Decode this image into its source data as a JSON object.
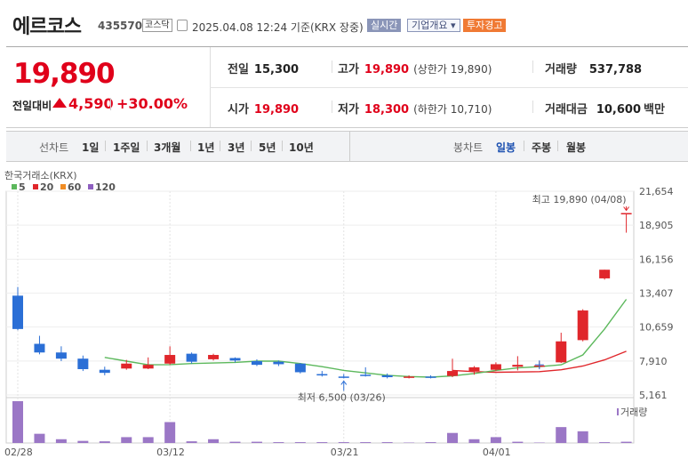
{
  "header": {
    "name": "에르코스",
    "code": "435570",
    "market": "코스닥",
    "datetime": "2025.04.08 12:24 기준(KRX 장중)",
    "badge_realtime": "실시간",
    "badge_company": "기업개요 ▾",
    "badge_warning": "투자경고"
  },
  "quote": {
    "price": "19,890",
    "change_label": "전일대비",
    "change": "4,590",
    "change_pct": "+30.00%",
    "prev_close_label": "전일",
    "prev_close": "15,300",
    "high_label": "고가",
    "high": "19,890",
    "upper_limit": "(상한가 19,890)",
    "volume_label": "거래량",
    "volume": "537,788",
    "open_label": "시가",
    "open": "19,890",
    "low_label": "저가",
    "low": "18,300",
    "lower_limit": "(하한가 10,710)",
    "amount_label": "거래대금",
    "amount": "10,600",
    "amount_unit": "백만"
  },
  "tabs": {
    "line_label": "선차트",
    "line": [
      "1일",
      "1주일",
      "3개월",
      "1년",
      "3년",
      "5년",
      "10년"
    ],
    "candle_label": "봉차트",
    "candle": [
      "일봉",
      "주봉",
      "월봉"
    ]
  },
  "colors": {
    "up": "#e0262b",
    "down": "#2b6fd6",
    "ma5": "#5cb85c",
    "ma20": "#e0262b",
    "ma60": "#f08c24",
    "ma120": "#8e5fc0",
    "volume": "#9b77c6"
  },
  "chart_data": {
    "type": "candlestick",
    "source_label": "한국거래소(KRX)",
    "legend": [
      {
        "name": "5",
        "color": "#5cb85c"
      },
      {
        "name": "20",
        "color": "#e0262b"
      },
      {
        "name": "60",
        "color": "#f08c24"
      },
      {
        "name": "120",
        "color": "#8e5fc0"
      }
    ],
    "ylim": [
      5161,
      21654
    ],
    "yticks": [
      21654,
      18905,
      16156,
      13407,
      10659,
      7910,
      5161
    ],
    "ytick_labels": [
      "21,654",
      "18,905",
      "16,156",
      "13,407",
      "10,659",
      "7,910",
      "5,161"
    ],
    "xtick_labels": [
      "02/28",
      "03/12",
      "03/21",
      "04/01"
    ],
    "xtick_index": [
      0,
      7,
      15,
      22
    ],
    "candles": [
      {
        "o": 13200,
        "h": 13900,
        "l": 10400,
        "c": 10500
      },
      {
        "o": 9300,
        "h": 9950,
        "l": 8450,
        "c": 8600
      },
      {
        "o": 8600,
        "h": 9100,
        "l": 7900,
        "c": 8100
      },
      {
        "o": 8100,
        "h": 8350,
        "l": 7100,
        "c": 7250
      },
      {
        "o": 7200,
        "h": 7450,
        "l": 6750,
        "c": 6950
      },
      {
        "o": 7300,
        "h": 8000,
        "l": 7200,
        "c": 7700
      },
      {
        "o": 7300,
        "h": 8200,
        "l": 7250,
        "c": 7600
      },
      {
        "o": 7700,
        "h": 9100,
        "l": 7600,
        "c": 8400
      },
      {
        "o": 8500,
        "h": 8600,
        "l": 7700,
        "c": 7850
      },
      {
        "o": 8050,
        "h": 8500,
        "l": 7950,
        "c": 8400
      },
      {
        "o": 8150,
        "h": 8200,
        "l": 7800,
        "c": 7950
      },
      {
        "o": 7900,
        "h": 8050,
        "l": 7500,
        "c": 7600
      },
      {
        "o": 7850,
        "h": 7950,
        "l": 7500,
        "c": 7650
      },
      {
        "o": 7700,
        "h": 7750,
        "l": 6900,
        "c": 7000
      },
      {
        "o": 6850,
        "h": 7100,
        "l": 6650,
        "c": 6750
      },
      {
        "o": 6650,
        "h": 6850,
        "l": 6500,
        "c": 6550
      },
      {
        "o": 6800,
        "h": 7400,
        "l": 6650,
        "c": 6750
      },
      {
        "o": 6750,
        "h": 6900,
        "l": 6500,
        "c": 6600
      },
      {
        "o": 6550,
        "h": 6750,
        "l": 6500,
        "c": 6650
      },
      {
        "o": 6650,
        "h": 6750,
        "l": 6500,
        "c": 6550
      },
      {
        "o": 6700,
        "h": 8100,
        "l": 6600,
        "c": 7100
      },
      {
        "o": 7100,
        "h": 7500,
        "l": 6800,
        "c": 7400
      },
      {
        "o": 7200,
        "h": 7800,
        "l": 7100,
        "c": 7650
      },
      {
        "o": 7450,
        "h": 8300,
        "l": 7150,
        "c": 7600
      },
      {
        "o": 7500,
        "h": 7900,
        "l": 7300,
        "c": 7550
      },
      {
        "o": 7800,
        "h": 10200,
        "l": 7750,
        "c": 9500
      },
      {
        "o": 9600,
        "h": 12100,
        "l": 9500,
        "c": 12000
      },
      {
        "o": 14600,
        "h": 15300,
        "l": 14500,
        "c": 15300
      },
      {
        "o": 19890,
        "h": 19890,
        "l": 18300,
        "c": 19890
      }
    ],
    "ma5": [
      null,
      null,
      null,
      null,
      8200,
      7900,
      7600,
      7620,
      7700,
      7750,
      7800,
      7900,
      7900,
      7700,
      7450,
      7150,
      6950,
      6750,
      6650,
      6600,
      6700,
      6900,
      7150,
      7350,
      7450,
      7600,
      8400,
      10500,
      12900
    ],
    "ma20": [
      null,
      null,
      null,
      null,
      null,
      null,
      null,
      null,
      null,
      null,
      null,
      null,
      null,
      null,
      null,
      null,
      null,
      null,
      null,
      null,
      7150,
      7050,
      7000,
      7020,
      7050,
      7200,
      7500,
      8000,
      8700
    ],
    "volume": [
      100,
      22,
      9,
      5,
      4,
      14,
      14,
      50,
      4,
      9,
      3,
      3,
      2,
      2,
      2,
      2,
      2,
      2,
      1,
      2,
      24,
      9,
      14,
      3,
      1,
      38,
      28,
      2,
      3
    ],
    "volume_label": "거래량",
    "annotation_high": "최고 19,890 (04/08)",
    "annotation_low": "최저 6,500 (03/26)"
  }
}
